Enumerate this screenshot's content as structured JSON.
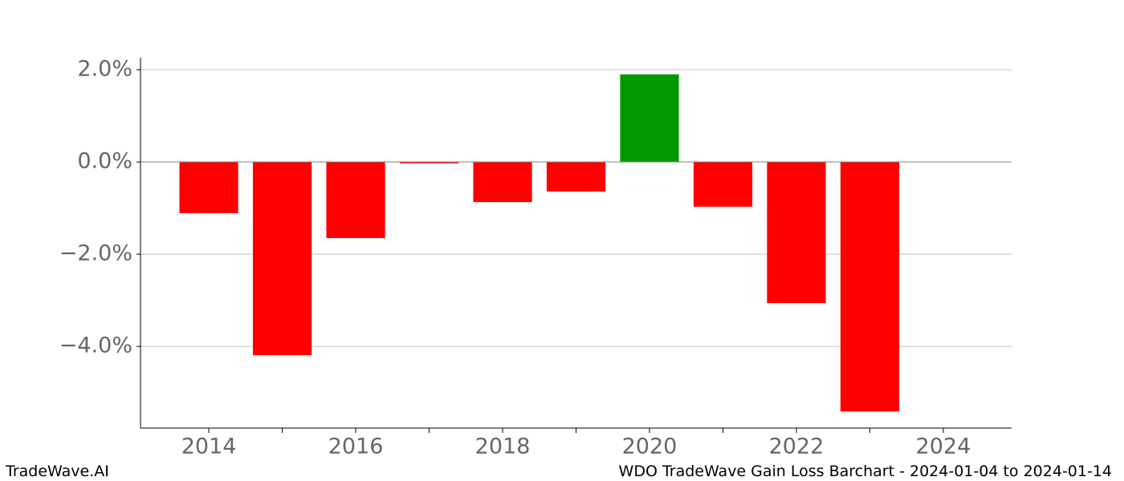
{
  "chart_data": {
    "type": "bar",
    "title": "WDO TradeWave Gain Loss Barchart - 2024-01-04 to 2024-01-14",
    "brand": "TradeWave.AI",
    "x": [
      2014,
      2015,
      2016,
      2017,
      2018,
      2019,
      2020,
      2021,
      2022,
      2023
    ],
    "values": [
      -1.11,
      -4.19,
      -1.65,
      -0.03,
      -0.87,
      -0.64,
      1.9,
      -0.97,
      -3.06,
      -5.41
    ],
    "bar_width": 0.8,
    "positive_color": "#009900",
    "negative_color": "#ff0000",
    "xlim": [
      2013.07,
      2024.93
    ],
    "xticks": [
      2014,
      2016,
      2018,
      2020,
      2022,
      2024
    ],
    "xminor_ticks": [
      2015,
      2017,
      2019,
      2021,
      2023
    ],
    "ylim": [
      -5.77,
      2.26
    ],
    "yticks": [
      {
        "value": -4,
        "label": "−4.0%"
      },
      {
        "value": -2,
        "label": "−2.0%"
      },
      {
        "value": 0,
        "label": "0.0%"
      },
      {
        "value": 2,
        "label": "2.0%"
      }
    ],
    "grid": true
  }
}
